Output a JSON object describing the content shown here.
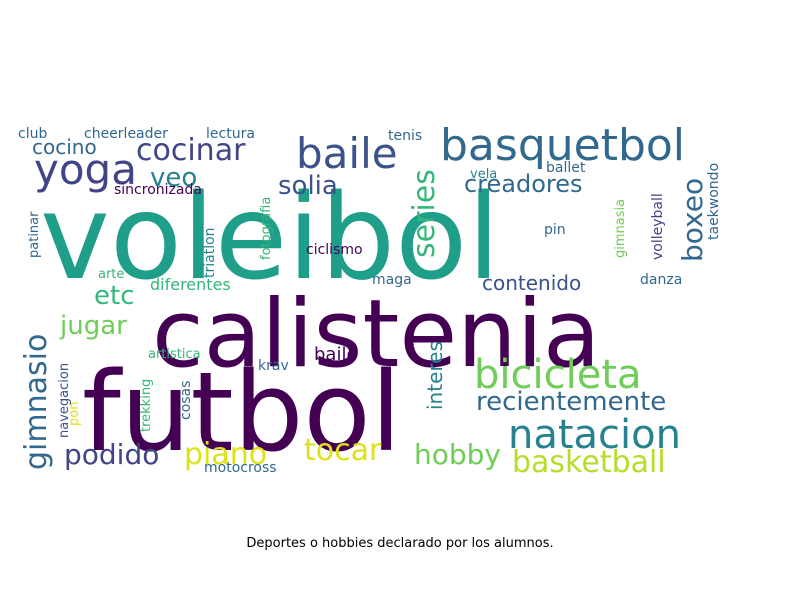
{
  "caption": "Deportes o hobbies declarado por los alumnos.",
  "colors": {
    "dark_purple": "#440154",
    "indigo": "#3b528b",
    "slate_blue": "#414487",
    "blue_teal": "#31688e",
    "teal": "#21918c",
    "green_teal": "#26828e",
    "sea_green": "#1f9e89",
    "green": "#35b779",
    "light_green": "#6ece58",
    "lime": "#b5de2b",
    "yellow": "#dde318"
  },
  "words": [
    {
      "text": "voleibol",
      "color": "#1f9e89"
    },
    {
      "text": "calistenia",
      "color": "#440154"
    },
    {
      "text": "futbol",
      "color": "#440154"
    },
    {
      "text": "basquetbol",
      "color": "#31688e"
    },
    {
      "text": "baile",
      "color": "#3b528b"
    },
    {
      "text": "yoga",
      "color": "#414487"
    },
    {
      "text": "cocinar",
      "color": "#414487"
    },
    {
      "text": "bicicleta",
      "color": "#6ece58"
    },
    {
      "text": "natacion",
      "color": "#26828e"
    },
    {
      "text": "basketball",
      "color": "#b5de2b"
    },
    {
      "text": "recientemente",
      "color": "#31688e"
    },
    {
      "text": "podido",
      "color": "#414487"
    },
    {
      "text": "piano",
      "color": "#dde318"
    },
    {
      "text": "tocar",
      "color": "#dde318"
    },
    {
      "text": "hobby",
      "color": "#6ece58"
    },
    {
      "text": "gimnasio",
      "color": "#31688e"
    },
    {
      "text": "series",
      "color": "#35b779"
    },
    {
      "text": "boxeo",
      "color": "#31688e"
    },
    {
      "text": "creadores",
      "color": "#31688e"
    },
    {
      "text": "solia",
      "color": "#3b528b"
    },
    {
      "text": "veo",
      "color": "#26828e"
    },
    {
      "text": "cocino",
      "color": "#31688e"
    },
    {
      "text": "etc",
      "color": "#35b779"
    },
    {
      "text": "jugar",
      "color": "#6ece58"
    },
    {
      "text": "contenido",
      "color": "#3b528b"
    },
    {
      "text": "interes",
      "color": "#26828e"
    },
    {
      "text": "diferentes",
      "color": "#35b779"
    },
    {
      "text": "bailo",
      "color": "#440154"
    },
    {
      "text": "ciclismo",
      "color": "#440154"
    },
    {
      "text": "club",
      "color": "#31688e"
    },
    {
      "text": "cheerleader",
      "color": "#31688e"
    },
    {
      "text": "lectura",
      "color": "#31688e"
    },
    {
      "text": "tenis",
      "color": "#31688e"
    },
    {
      "text": "ballet",
      "color": "#31688e"
    },
    {
      "text": "vela",
      "color": "#26828e"
    },
    {
      "text": "sincronizada",
      "color": "#440154"
    },
    {
      "text": "fotografia",
      "color": "#35b779"
    },
    {
      "text": "triatlon",
      "color": "#26828e"
    },
    {
      "text": "gimnasia",
      "color": "#6ece58"
    },
    {
      "text": "volleyball",
      "color": "#414487"
    },
    {
      "text": "taekwondo",
      "color": "#31688e"
    },
    {
      "text": "pin",
      "color": "#31688e"
    },
    {
      "text": "pon",
      "color": "#dde318"
    },
    {
      "text": "patinar",
      "color": "#31688e"
    },
    {
      "text": "arte",
      "color": "#35b779"
    },
    {
      "text": "maga",
      "color": "#31688e"
    },
    {
      "text": "danza",
      "color": "#31688e"
    },
    {
      "text": "navegacion",
      "color": "#3b528b"
    },
    {
      "text": "artistica",
      "color": "#35b779"
    },
    {
      "text": "krav",
      "color": "#31688e"
    },
    {
      "text": "cosas",
      "color": "#31688e"
    },
    {
      "text": "trekking",
      "color": "#35b779"
    },
    {
      "text": "motocross",
      "color": "#31688e"
    }
  ]
}
